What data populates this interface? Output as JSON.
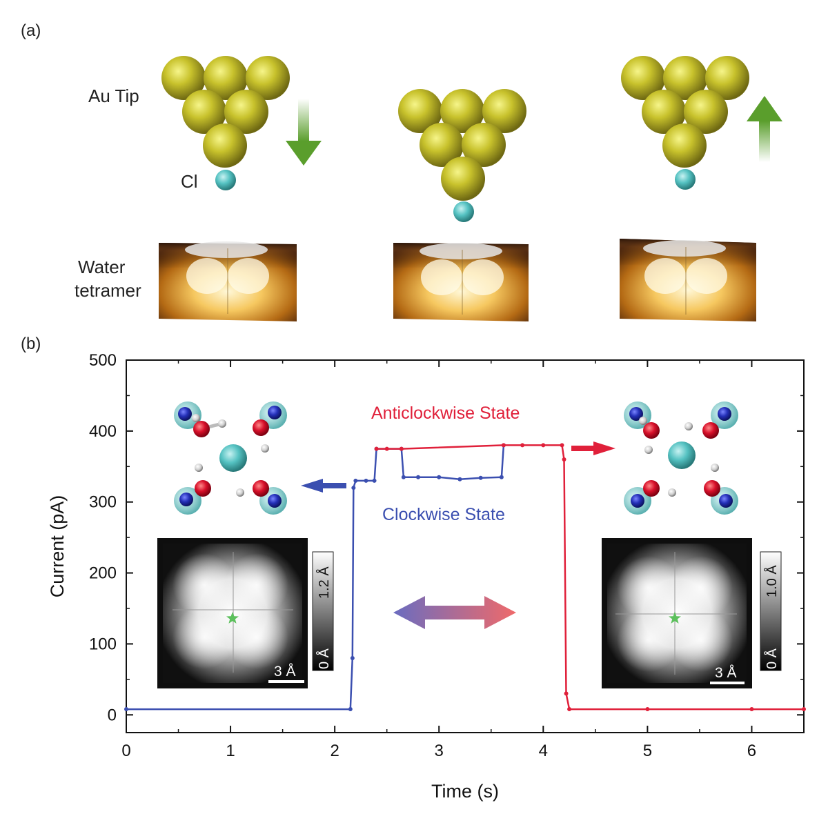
{
  "panel_a": {
    "label": "(a)",
    "au_tip_label": "Au Tip",
    "cl_label": "Cl",
    "water_label_line1": "Water",
    "water_label_line2": "tetramer"
  },
  "panel_b": {
    "label": "(b)",
    "anticlockwise_label": "Anticlockwise State",
    "clockwise_label": "Clockwise State",
    "inset_left": {
      "scale_top": "1.2 Å",
      "scale_bottom": "0 Å",
      "scalebar": "3 Å"
    },
    "inset_right": {
      "scale_top": "1.0 Å",
      "scale_bottom": "0 Å",
      "scalebar": "3 Å"
    }
  },
  "colors": {
    "gold": "#b8b020",
    "cl": "#55c2c2",
    "arrow_green": "#5a9e2c",
    "clockwise": "#3b4fb0",
    "anticlockwise": "#e0203a"
  },
  "chart_data": {
    "type": "line",
    "xlabel": "Time (s)",
    "ylabel": "Current (pA)",
    "xlim": [
      0,
      6.5
    ],
    "ylim": [
      -25,
      500
    ],
    "xticks": [
      0,
      1,
      2,
      3,
      4,
      5,
      6
    ],
    "yticks": [
      0,
      100,
      200,
      300,
      400,
      500
    ],
    "series": [
      {
        "name": "Clockwise State",
        "color": "#3b4fb0",
        "x": [
          0,
          2.15,
          2.17,
          2.18,
          2.2,
          2.3,
          2.38,
          2.4,
          2.64,
          2.66,
          2.8,
          3.0,
          3.2,
          3.4,
          3.6,
          3.62
        ],
        "y": [
          8,
          8,
          80,
          320,
          330,
          330,
          330,
          375,
          375,
          335,
          335,
          335,
          332,
          334,
          335,
          380
        ]
      },
      {
        "name": "Anticlockwise State",
        "color": "#e0203a",
        "x": [
          2.4,
          2.5,
          2.64,
          3.62,
          3.8,
          4.0,
          4.18,
          4.2,
          4.22,
          4.25,
          5.0,
          6.0,
          6.5
        ],
        "y": [
          375,
          375,
          375,
          380,
          380,
          380,
          380,
          360,
          30,
          8,
          8,
          8,
          8
        ]
      }
    ]
  }
}
